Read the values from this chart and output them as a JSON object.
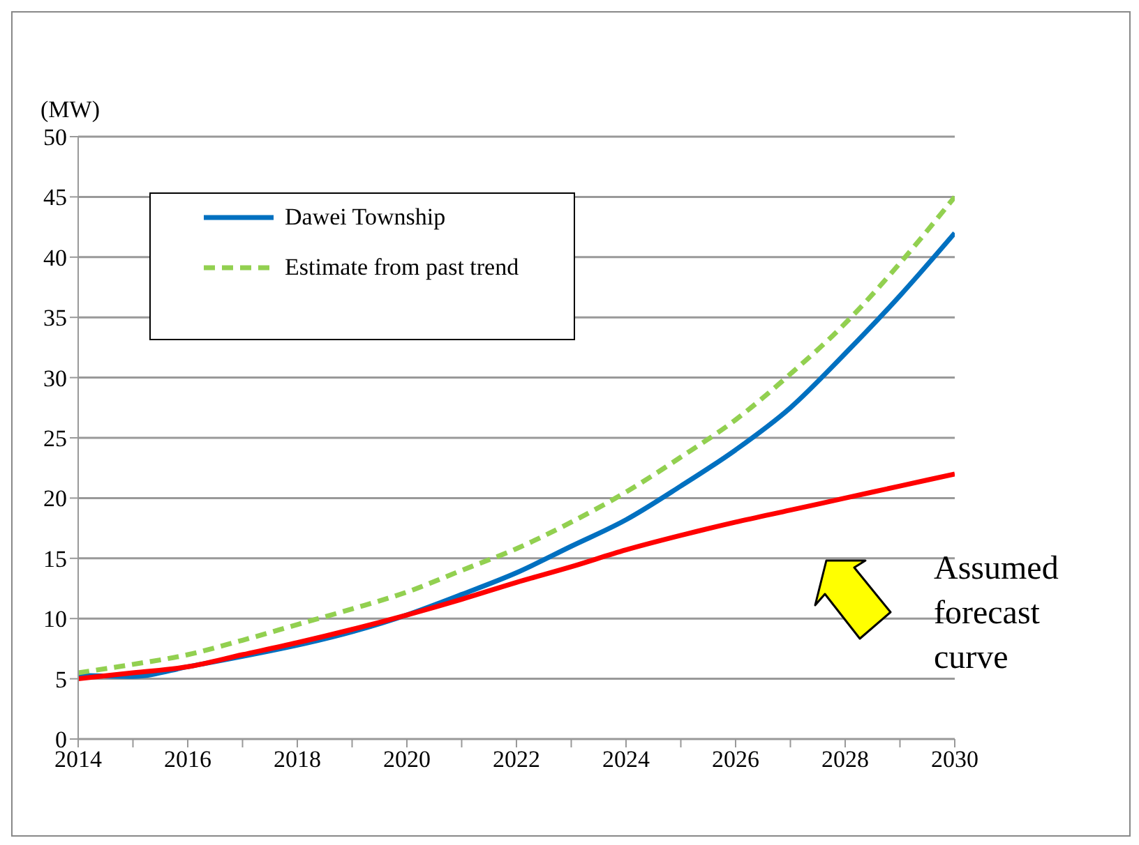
{
  "chart_data": {
    "type": "line",
    "ylabel": "(MW)",
    "x": [
      2014,
      2015,
      2016,
      2017,
      2018,
      2019,
      2020,
      2021,
      2022,
      2023,
      2024,
      2025,
      2026,
      2027,
      2028,
      2029,
      2030
    ],
    "series": [
      {
        "name": "Dawei Township",
        "color": "#0070c0",
        "line_style": "solid",
        "values": [
          5.3,
          5.2,
          6,
          null,
          null,
          null,
          10.3,
          12,
          13.8,
          16,
          18.2,
          21,
          24,
          27.5,
          32,
          36.8,
          42
        ]
      },
      {
        "name": "Estimate from past trend",
        "color": "#92d050",
        "line_style": "dashed",
        "values": [
          5.5,
          6.2,
          7,
          8.2,
          9.5,
          10.8,
          12.2,
          14,
          15.8,
          18,
          20.5,
          23.4,
          26.5,
          30.3,
          34.5,
          39.5,
          45
        ]
      },
      {
        "color": "#ff0000",
        "line_style": "solid",
        "values": [
          5,
          5.5,
          6,
          7,
          8,
          9.1,
          10.3,
          11.6,
          13,
          14.3,
          15.7,
          16.9,
          18,
          19,
          20,
          21,
          22
        ]
      }
    ],
    "xlim": [
      2014,
      2030
    ],
    "xticks": [
      2014,
      {
        "value": 2015,
        "label": null
      },
      2016,
      {
        "value": 2017,
        "label": null
      },
      2018,
      {
        "value": 2019,
        "label": null
      },
      2020,
      {
        "value": 2021,
        "label": null
      },
      2022,
      {
        "value": 2023,
        "label": null
      },
      2024,
      {
        "value": 2025,
        "label": null
      },
      2026,
      {
        "value": 2027,
        "label": null
      },
      2028,
      {
        "value": 2029,
        "label": null
      },
      2030
    ],
    "ylim": [
      0,
      50
    ],
    "yticks": [
      0,
      5,
      10,
      15,
      20,
      25,
      30,
      35,
      40,
      45,
      50
    ],
    "grid": "y",
    "legend": "top left",
    "marker": "none",
    "annotations": [
      "Assumed forecast curve"
    ]
  }
}
